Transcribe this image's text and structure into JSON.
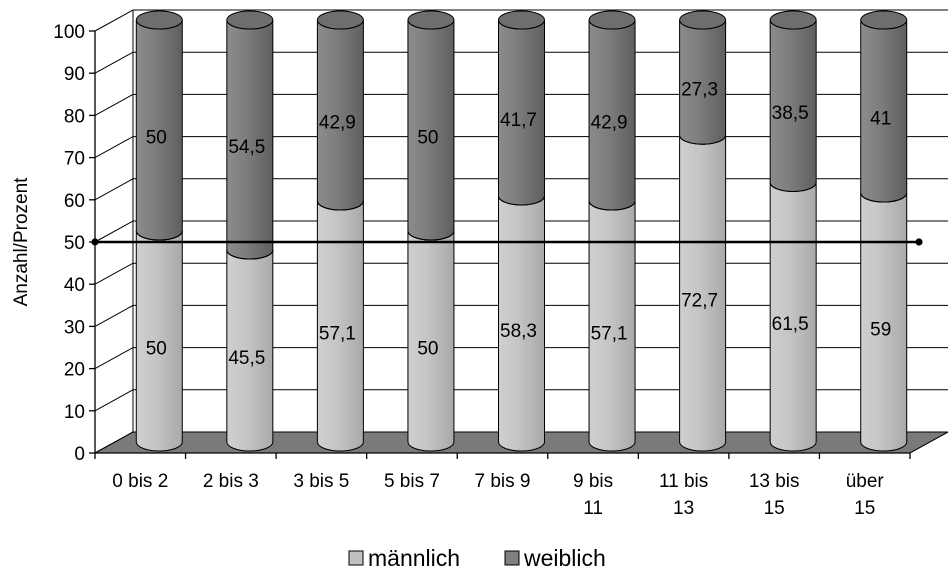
{
  "chart_data": {
    "type": "bar",
    "stacked": true,
    "three_d": true,
    "categories": [
      "0 bis 2",
      "2 bis 3",
      "3 bis 5",
      "5 bis 7",
      "7 bis 9",
      "9 bis 11",
      "11 bis 13",
      "13 bis 15",
      "über 15"
    ],
    "category_label_lines": [
      [
        "0 bis 2"
      ],
      [
        "2 bis 3"
      ],
      [
        "3 bis 5"
      ],
      [
        "5 bis 7"
      ],
      [
        "7 bis 9"
      ],
      [
        "9 bis",
        "11"
      ],
      [
        "11 bis",
        "13"
      ],
      [
        "13 bis",
        "15"
      ],
      [
        "über",
        "15"
      ]
    ],
    "series": [
      {
        "name": "männlich",
        "color": "#c0c0c0",
        "values": [
          50,
          45.5,
          57.1,
          50,
          58.3,
          57.1,
          72.7,
          61.5,
          59
        ],
        "labels": [
          "50",
          "45,5",
          "57,1",
          "50",
          "58,3",
          "57,1",
          "72,7",
          "61,5",
          "59"
        ]
      },
      {
        "name": "weiblich",
        "color": "#808080",
        "values": [
          50,
          54.5,
          42.9,
          50,
          41.7,
          42.9,
          27.3,
          38.5,
          41
        ],
        "labels": [
          "50",
          "54,5",
          "42,9",
          "50",
          "41,7",
          "42,9",
          "27,3",
          "38,5",
          "41"
        ]
      }
    ],
    "reference_line": {
      "value": 50
    },
    "title": "",
    "xlabel": "",
    "ylabel": "Anzahl/Prozent",
    "ylim": [
      0,
      100
    ],
    "yticks": [
      0,
      10,
      20,
      30,
      40,
      50,
      60,
      70,
      80,
      90,
      100
    ],
    "grid": true,
    "legend_position": "bottom"
  }
}
